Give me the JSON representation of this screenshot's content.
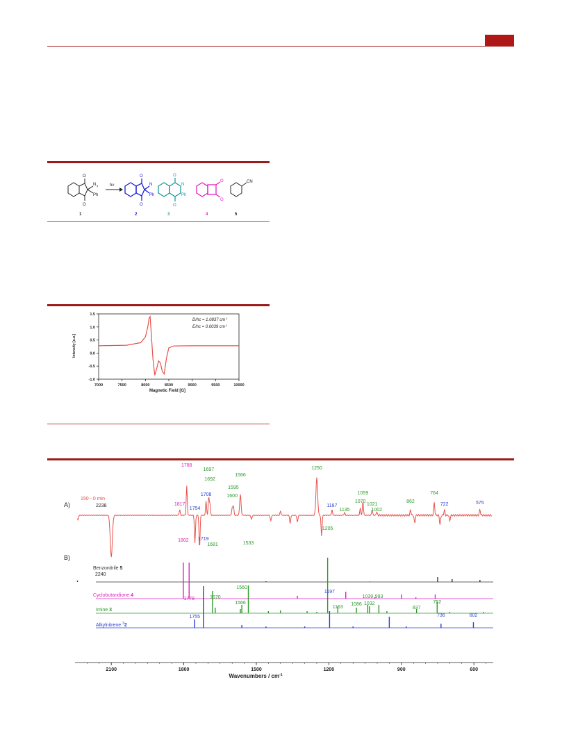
{
  "scheme": {
    "labels": [
      "1",
      "2",
      "3",
      "4",
      "5"
    ],
    "arrow_text": "hν",
    "substituent_N3": "N",
    "substituent_N3_sub": "3",
    "substituent_Ph": "Ph",
    "substituent_CN": "CN",
    "substituent_N": "N",
    "atom_O": "O",
    "colors": {
      "c1": "#222222",
      "c2": "#1a1adb",
      "c3": "#1a9a9a",
      "c4": "#e020c0",
      "c5": "#222222"
    }
  },
  "epr": {
    "legend_D": "D/hc = 1.0837 cm",
    "legend_E": "E/hc = 0.0039 cm",
    "legend_unit_sup": "-1",
    "color": "#e8504a",
    "chart_data": {
      "type": "line",
      "xlabel": "Magnetic Field [G]",
      "ylabel": "Intensity [a.u.]",
      "xlim": [
        7000,
        10000
      ],
      "ylim": [
        -1.0,
        1.5
      ],
      "xticks": [
        7000,
        7500,
        8000,
        8500,
        9000,
        9500,
        10000
      ],
      "yticks": [
        1.5,
        1.0,
        0.5,
        0.0,
        -0.5,
        -1.0
      ],
      "x": [
        7000,
        7600,
        7900,
        8000,
        8050,
        8080,
        8100,
        8130,
        8160,
        8200,
        8240,
        8280,
        8320,
        8360,
        8400,
        8450,
        8500,
        8600,
        9000,
        10000
      ],
      "y": [
        0.28,
        0.3,
        0.4,
        0.62,
        1.0,
        1.35,
        1.4,
        0.6,
        -0.2,
        -0.85,
        -0.6,
        -0.3,
        -0.38,
        -0.7,
        -0.8,
        -0.2,
        0.2,
        0.27,
        0.28,
        0.28
      ]
    }
  },
  "ir": {
    "panel_A": "A)",
    "panel_B": "B)",
    "trace_label": "150 - 0 min",
    "label_2238": "2238",
    "label_2240": "2240",
    "series_names": [
      {
        "name": "Benzonitrile ",
        "num": "5",
        "color": "#333333"
      },
      {
        "name": "Cyclobutandione ",
        "num": "4",
        "color": "#e020c0"
      },
      {
        "name": "Imine ",
        "num": "3",
        "color": "#2a9a2a"
      },
      {
        "name": "Alkylnitrene ",
        "sup": "3",
        "num": "2",
        "color": "#2b3fd0"
      }
    ],
    "chart_data": {
      "type": "line",
      "xlabel": "Wavenumbers / cm",
      "xlabel_sup": "-1",
      "xticks": [
        2100,
        1800,
        1500,
        1200,
        900,
        600
      ],
      "xlim": [
        2250,
        520
      ],
      "annotations_A": [
        {
          "x": 1817,
          "t": "1817",
          "c": "#e020c0"
        },
        {
          "x": 1788,
          "t": "1788",
          "c": "#e020c0"
        },
        {
          "x": 1754,
          "t": "1754",
          "c": "#2b3fd0"
        },
        {
          "x": 1708,
          "t": "1708",
          "c": "#2b3fd0"
        },
        {
          "x": 1697,
          "t": "1697",
          "c": "#2a9a2a"
        },
        {
          "x": 1692,
          "t": "1692",
          "c": "#2a9a2a"
        },
        {
          "x": 1600,
          "t": "1600",
          "c": "#2a9a2a"
        },
        {
          "x": 1595,
          "t": "1595",
          "c": "#2a9a2a"
        },
        {
          "x": 1566,
          "t": "1566",
          "c": "#2a9a2a"
        },
        {
          "x": 1250,
          "t": "1250",
          "c": "#2a9a2a"
        },
        {
          "x": 1187,
          "t": "1187",
          "c": "#2b3fd0"
        },
        {
          "x": 1135,
          "t": "1135",
          "c": "#2a9a2a"
        },
        {
          "x": 1070,
          "t": "1070",
          "c": "#2a9a2a"
        },
        {
          "x": 1059,
          "t": "1059",
          "c": "#2a9a2a"
        },
        {
          "x": 1021,
          "t": "1021",
          "c": "#2a9a2a"
        },
        {
          "x": 1002,
          "t": "1002",
          "c": "#2a9a2a"
        },
        {
          "x": 862,
          "t": "862",
          "c": "#2a9a2a"
        },
        {
          "x": 764,
          "t": "764",
          "c": "#2a9a2a"
        },
        {
          "x": 722,
          "t": "722",
          "c": "#2b3fd0"
        },
        {
          "x": 575,
          "t": "575",
          "c": "#2b3fd0"
        }
      ],
      "annotations_B": [
        {
          "x": 1802,
          "t": "1802",
          "c": "#e020c0"
        },
        {
          "x": 1778,
          "t": "1778",
          "c": "#e020c0"
        },
        {
          "x": 1719,
          "t": "1719",
          "c": "#2b3fd0"
        },
        {
          "x": 1681,
          "t": "1681",
          "c": "#2a9a2a"
        },
        {
          "x": 1670,
          "t": "1670",
          "c": "#2a9a2a"
        },
        {
          "x": 1560,
          "t": "1560",
          "c": "#2a9a2a"
        },
        {
          "x": 1566,
          "t": "1566",
          "c": "#2a9a2a"
        },
        {
          "x": 1533,
          "t": "1533",
          "c": "#2a9a2a"
        },
        {
          "x": 1205,
          "t": "1205",
          "c": "#2a9a2a"
        },
        {
          "x": 1197,
          "t": "1197",
          "c": "#2b3fd0"
        },
        {
          "x": 1163,
          "t": "1163",
          "c": "#2a9a2a"
        },
        {
          "x": 1086,
          "t": "1086",
          "c": "#2a9a2a"
        },
        {
          "x": 1039,
          "t": "1039",
          "c": "#2a9a2a"
        },
        {
          "x": 1032,
          "t": "1032",
          "c": "#2a9a2a"
        },
        {
          "x": 993,
          "t": "993",
          "c": "#2a9a2a"
        },
        {
          "x": 837,
          "t": "837",
          "c": "#2a9a2a"
        },
        {
          "x": 752,
          "t": "752",
          "c": "#2a9a2a"
        },
        {
          "x": 1755,
          "t": "1755",
          "c": "#2b3fd0"
        },
        {
          "x": 736,
          "t": "736",
          "c": "#2b3fd0"
        },
        {
          "x": 602,
          "t": "602",
          "c": "#2b3fd0"
        }
      ],
      "series": [
        {
          "name": "Benzonitrile 5",
          "color": "#333333",
          "peaks": [
            [
              2240,
              0.1
            ],
            [
              750,
              0.35
            ],
            [
              690,
              0.2
            ],
            [
              575,
              0.15
            ],
            [
              1460,
              0.05
            ],
            [
              1030,
              0.03
            ]
          ]
        },
        {
          "name": "Cyclobutandione 4",
          "color": "#e020c0",
          "peaks": [
            [
              1802,
              2.6
            ],
            [
              1778,
              2.6
            ],
            [
              1130,
              0.5
            ],
            [
              900,
              0.3
            ],
            [
              1330,
              0.2
            ],
            [
              1010,
              0.1
            ],
            [
              760,
              0.3
            ],
            [
              840,
              0.1
            ]
          ]
        },
        {
          "name": "Imine 3",
          "color": "#2a9a2a",
          "peaks": [
            [
              1681,
              1.6
            ],
            [
              1670,
              0.4
            ],
            [
              1566,
              0.3
            ],
            [
              1560,
              0.6
            ],
            [
              1533,
              2.0
            ],
            [
              1205,
              4.0
            ],
            [
              1163,
              0.5
            ],
            [
              1086,
              0.4
            ],
            [
              1039,
              0.6
            ],
            [
              1032,
              0.5
            ],
            [
              993,
              0.6
            ],
            [
              837,
              0.3
            ],
            [
              752,
              0.8
            ],
            [
              1450,
              0.15
            ],
            [
              1400,
              0.2
            ],
            [
              1290,
              0.15
            ],
            [
              1250,
              0.1
            ],
            [
              960,
              0.15
            ],
            [
              700,
              0.1
            ],
            [
              560,
              0.1
            ]
          ]
        },
        {
          "name": "Alkylnitrene 2",
          "color": "#2b3fd0",
          "peaks": [
            [
              1755,
              0.6
            ],
            [
              1719,
              3.0
            ],
            [
              1197,
              1.2
            ],
            [
              736,
              0.3
            ],
            [
              602,
              0.4
            ],
            [
              1560,
              0.2
            ],
            [
              1460,
              0.1
            ],
            [
              1300,
              0.1
            ],
            [
              1100,
              0.1
            ],
            [
              950,
              0.8
            ],
            [
              880,
              0.1
            ]
          ]
        }
      ]
    }
  }
}
